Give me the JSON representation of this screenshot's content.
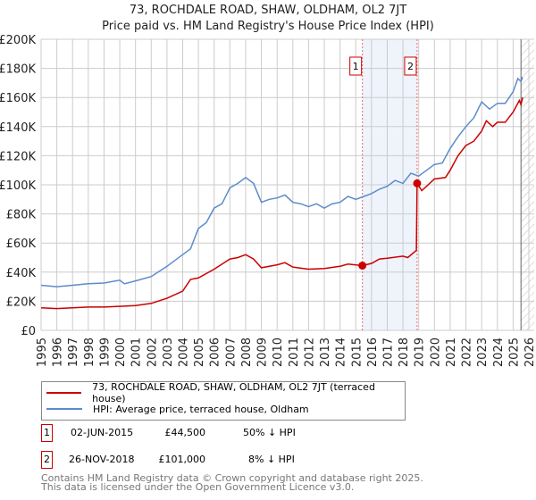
{
  "chart_data": {
    "type": "line",
    "title": "73, ROCHDALE ROAD, SHAW, OLDHAM, OL2 7JT",
    "subtitle": "Price paid vs. HM Land Registry's House Price Index (HPI)",
    "xlim": [
      1995,
      2026
    ],
    "ylim": [
      0,
      200000
    ],
    "y_ticks": [
      {
        "v": 0,
        "l": "£0"
      },
      {
        "v": 20000,
        "l": "£20K"
      },
      {
        "v": 40000,
        "l": "£40K"
      },
      {
        "v": 60000,
        "l": "£60K"
      },
      {
        "v": 80000,
        "l": "£80K"
      },
      {
        "v": 100000,
        "l": "£100K"
      },
      {
        "v": 120000,
        "l": "£120K"
      },
      {
        "v": 140000,
        "l": "£140K"
      },
      {
        "v": 160000,
        "l": "£160K"
      },
      {
        "v": 180000,
        "l": "£180K"
      },
      {
        "v": 200000,
        "l": "£200K"
      }
    ],
    "x_ticks": [
      "1995",
      "1996",
      "1997",
      "1998",
      "1999",
      "2000",
      "2001",
      "2002",
      "2003",
      "2004",
      "2005",
      "2006",
      "2007",
      "2008",
      "2009",
      "2010",
      "2011",
      "2012",
      "2013",
      "2014",
      "2015",
      "2016",
      "2017",
      "2018",
      "2019",
      "2020",
      "2021",
      "2022",
      "2023",
      "2024",
      "2025",
      "2026"
    ],
    "grid": true,
    "series": [
      {
        "name": "73, ROCHDALE ROAD, SHAW, OLDHAM, OL2 7JT (terraced house)",
        "color": "#cc0000",
        "x": [
          1995,
          1996,
          1997,
          1998,
          1999,
          2000,
          2001,
          2002,
          2003,
          2004,
          2004.5,
          2005,
          2006,
          2007,
          2007.5,
          2008,
          2008.5,
          2009,
          2010,
          2010.5,
          2011,
          2012,
          2013,
          2014,
          2014.5,
          2015.42,
          2016,
          2016.5,
          2017,
          2018,
          2018.3,
          2018.85,
          2018.9,
          2019.2,
          2020,
          2020.7,
          2021,
          2021.5,
          2022,
          2022.5,
          2023,
          2023.3,
          2023.7,
          2024,
          2024.5,
          2025,
          2025.4,
          2025.5,
          2025.6
        ],
        "y": [
          15500,
          15000,
          15500,
          16000,
          16000,
          16500,
          17000,
          18500,
          22000,
          27000,
          35000,
          36000,
          42000,
          49000,
          50000,
          52000,
          49000,
          43000,
          45000,
          46500,
          43500,
          42000,
          42500,
          44000,
          45500,
          44500,
          46000,
          49000,
          49500,
          51000,
          50000,
          55000,
          101000,
          96000,
          104000,
          105000,
          110000,
          120000,
          127000,
          130000,
          137000,
          144000,
          140000,
          143000,
          143000,
          150000,
          158000,
          155000,
          160000
        ]
      },
      {
        "name": "HPI: Average price, terraced house, Oldham",
        "color": "#5b8ccc",
        "x": [
          1995,
          1996,
          1997,
          1998,
          1999,
          2000,
          2000.3,
          2001,
          2002,
          2003,
          2004,
          2004.5,
          2005,
          2005.5,
          2006,
          2006.5,
          2007,
          2007.5,
          2008,
          2008.5,
          2009,
          2009.5,
          2010,
          2010.5,
          2011,
          2011.5,
          2012,
          2012.5,
          2013,
          2013.5,
          2014,
          2014.5,
          2015,
          2015.5,
          2016,
          2016.5,
          2017,
          2017.5,
          2018,
          2018.5,
          2019,
          2019.5,
          2020,
          2020.5,
          2021,
          2021.5,
          2022,
          2022.5,
          2023,
          2023.5,
          2024,
          2024.5,
          2025,
          2025.3,
          2025.5,
          2025.6
        ],
        "y": [
          31000,
          30000,
          31000,
          32000,
          32500,
          34500,
          32000,
          34000,
          37000,
          44000,
          52000,
          56000,
          70000,
          74000,
          84000,
          87000,
          98000,
          101000,
          105000,
          101000,
          88000,
          90000,
          91000,
          93000,
          88000,
          87000,
          85000,
          87000,
          84000,
          87000,
          88000,
          92000,
          90000,
          92000,
          94000,
          97000,
          99000,
          103000,
          101000,
          108000,
          106000,
          110000,
          114000,
          115000,
          125000,
          133000,
          140000,
          146000,
          157000,
          152000,
          156000,
          156000,
          164000,
          173000,
          171000,
          174000
        ]
      }
    ],
    "sales": [
      {
        "n": "1",
        "x": 2015.42,
        "y": 44500
      },
      {
        "n": "2",
        "x": 2018.9,
        "y": 101000
      }
    ],
    "shade": [
      2015.42,
      2018.9
    ],
    "forecast_from": 2025.5
  },
  "table": [
    {
      "n": "1",
      "date": "02-JUN-2015",
      "price": "£44,500",
      "hpi": "50% ↓ HPI"
    },
    {
      "n": "2",
      "date": "26-NOV-2018",
      "price": "£101,000",
      "hpi": "8% ↓ HPI"
    }
  ],
  "footer": {
    "line1": "Contains HM Land Registry data © Crown copyright and database right 2025.",
    "line2": "This data is licensed under the Open Government Licence v3.0."
  }
}
